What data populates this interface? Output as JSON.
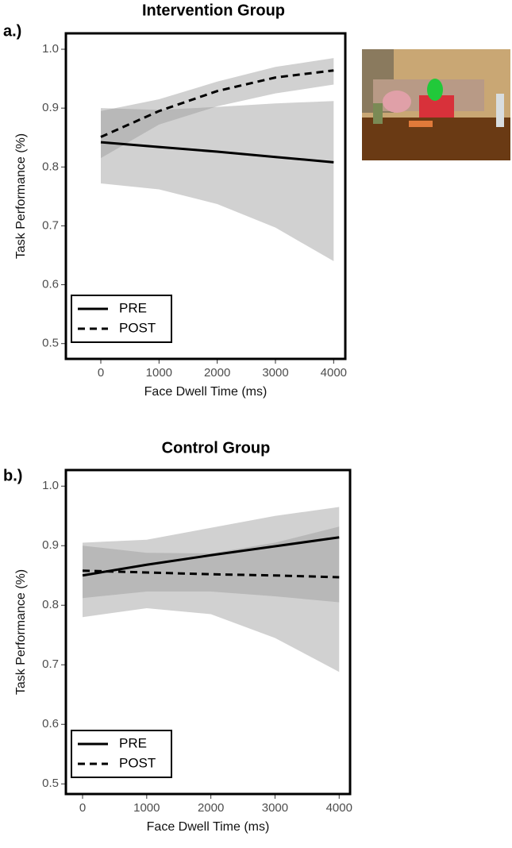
{
  "chart_data": [
    {
      "type": "line",
      "panel_label": "a.)",
      "title": "Intervention Group",
      "x_label": "Face Dwell Time (ms)",
      "y_label": "Task Performance (%)",
      "x": [
        0,
        1000,
        2000,
        3000,
        4000
      ],
      "series": [
        {
          "name": "PRE",
          "color": "#000000",
          "linestyle": "solid",
          "band_color": "#9a9a9a",
          "values": [
            0.842,
            0.834,
            0.826,
            0.817,
            0.808
          ],
          "lower": [
            0.772,
            0.762,
            0.737,
            0.697,
            0.64
          ],
          "upper": [
            0.9,
            0.897,
            0.902,
            0.908,
            0.912
          ]
        },
        {
          "name": "POST",
          "color": "#000000",
          "linestyle": "dashed",
          "band_color": "#9a9a9a",
          "values": [
            0.851,
            0.895,
            0.929,
            0.952,
            0.964
          ],
          "lower": [
            0.815,
            0.872,
            0.903,
            0.925,
            0.94
          ],
          "upper": [
            0.895,
            0.915,
            0.945,
            0.97,
            0.985
          ]
        }
      ],
      "xlim": [
        -600,
        4200
      ],
      "ylim": [
        0.474,
        1.027
      ],
      "xticks": [
        0,
        1000,
        2000,
        3000,
        4000
      ],
      "yticks": [
        {
          "value": 0.5,
          "label": "0.5"
        },
        {
          "value": 0.6,
          "label": "0.6"
        },
        {
          "value": 0.7,
          "label": "0.7"
        },
        {
          "value": 0.8,
          "label": "0.8"
        },
        {
          "value": 0.9,
          "label": "0.9"
        },
        {
          "value": 1.0,
          "label": "1.0"
        }
      ],
      "legend": "lower left"
    },
    {
      "type": "line",
      "panel_label": "b.)",
      "title": "Control Group",
      "x_label": "Face Dwell Time (ms)",
      "y_label": "Task Performance (%)",
      "x": [
        0,
        1000,
        2000,
        3000,
        4000
      ],
      "series": [
        {
          "name": "PRE",
          "color": "#000000",
          "linestyle": "solid",
          "band_color": "#9a9a9a",
          "values": [
            0.85,
            0.868,
            0.884,
            0.899,
            0.914
          ],
          "lower": [
            0.78,
            0.795,
            0.785,
            0.745,
            0.688
          ],
          "upper": [
            0.905,
            0.91,
            0.93,
            0.95,
            0.965
          ]
        },
        {
          "name": "POST",
          "color": "#000000",
          "linestyle": "dashed",
          "band_color": "#9a9a9a",
          "values": [
            0.858,
            0.855,
            0.852,
            0.85,
            0.847
          ],
          "lower": [
            0.812,
            0.823,
            0.823,
            0.815,
            0.805
          ],
          "upper": [
            0.9,
            0.888,
            0.887,
            0.905,
            0.932
          ]
        }
      ],
      "xlim": [
        -260,
        4170
      ],
      "ylim": [
        0.483,
        1.027
      ],
      "xticks": [
        0,
        1000,
        2000,
        3000,
        4000
      ],
      "yticks": [
        {
          "value": 0.5,
          "label": "0.5"
        },
        {
          "value": 0.6,
          "label": "0.6"
        },
        {
          "value": 0.7,
          "label": "0.7"
        },
        {
          "value": 0.8,
          "label": "0.8"
        },
        {
          "value": 0.9,
          "label": "0.9"
        },
        {
          "value": 1.0,
          "label": "1.0"
        }
      ],
      "legend": "lower left"
    }
  ]
}
